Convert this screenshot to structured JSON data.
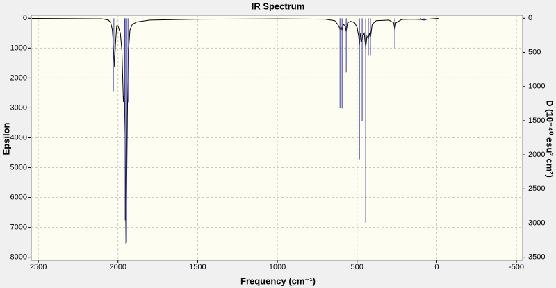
{
  "chart_data": {
    "type": "line",
    "title": "IR Spectrum",
    "xlabel": "Frequency (cm⁻¹)",
    "ylabel": "Epsilon",
    "y2label": "D (10⁻⁴⁰ esu² cm²)",
    "xlim": [
      2544,
      -539
    ],
    "xticks": [
      2500,
      2000,
      1500,
      1000,
      500,
      0,
      -500
    ],
    "ylim": [
      -100,
      8100
    ],
    "yticks": [
      0,
      1000,
      2000,
      3000,
      4000,
      5000,
      6000,
      7000,
      8000
    ],
    "y2lim": [
      -44,
      3544
    ],
    "y2ticks": [
      0,
      500,
      1000,
      1500,
      2000,
      2500,
      3000,
      3500
    ],
    "y_inverted": true,
    "grid": true,
    "series": [
      {
        "type": "line",
        "color": "#000000",
        "x": [
          2540,
          2100,
          2060,
          2045,
          2035,
          2028,
          2022,
          2016,
          2008,
          2000,
          1985,
          1975,
          1966,
          1960,
          1955,
          1950,
          1946,
          1940,
          1935,
          1925,
          1910,
          1880,
          1800,
          1500,
          1000,
          700,
          640,
          615,
          607,
          600,
          594,
          585,
          575,
          568,
          560,
          540,
          515,
          500,
          490,
          485,
          478,
          470,
          465,
          455,
          446,
          438,
          429,
          422,
          416,
          405,
          380,
          300,
          270,
          263,
          256,
          220,
          150,
          100,
          80,
          60,
          -10
        ],
        "values": [
          5,
          20,
          60,
          150,
          400,
          1000,
          1620,
          900,
          250,
          250,
          500,
          1100,
          2800,
          2500,
          4000,
          7550,
          6000,
          2800,
          1200,
          400,
          200,
          120,
          60,
          30,
          20,
          30,
          80,
          250,
          380,
          300,
          400,
          200,
          250,
          450,
          150,
          100,
          150,
          300,
          600,
          900,
          500,
          800,
          600,
          500,
          1000,
          600,
          700,
          500,
          650,
          200,
          80,
          60,
          150,
          400,
          150,
          40,
          30,
          40,
          60,
          30,
          5
        ]
      },
      {
        "type": "stick",
        "color": "#3a3a9a",
        "axis": "y2",
        "x": [
          2029,
          2020,
          1959,
          1955,
          1946,
          1937,
          607,
          594,
          568,
          485,
          468,
          446,
          429,
          416,
          263,
          100,
          80
        ],
        "values": [
          1068,
          712,
          1210,
          2960,
          3286,
          1230,
          1312,
          1322,
          793,
          2065,
          1505,
          3001,
          539,
          539,
          437,
          20,
          30
        ]
      }
    ]
  }
}
